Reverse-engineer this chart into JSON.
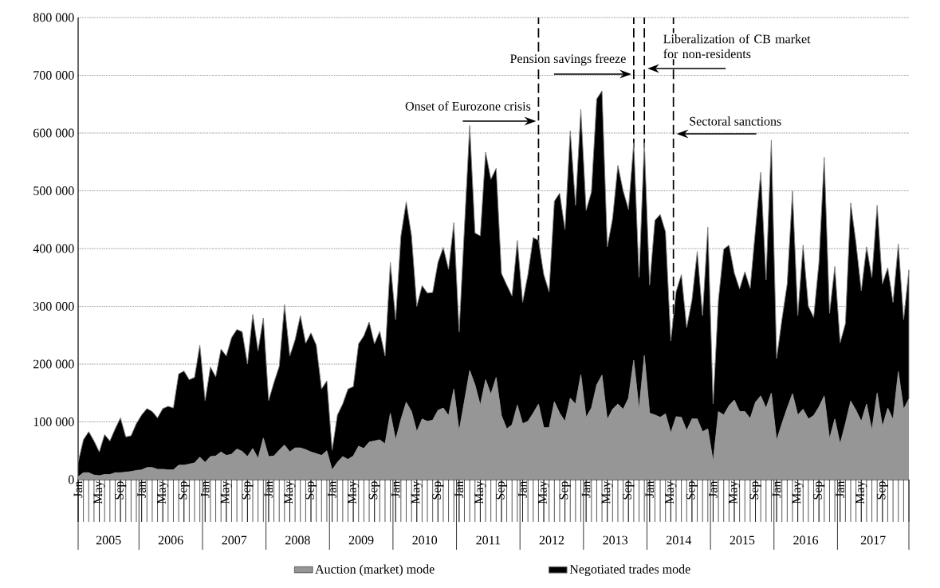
{
  "chart_data": {
    "type": "area",
    "stacked": true,
    "x": [
      "2005-01",
      "2005-02",
      "2005-03",
      "2005-04",
      "2005-05",
      "2005-06",
      "2005-07",
      "2005-08",
      "2005-09",
      "2005-10",
      "2005-11",
      "2005-12",
      "2006-01",
      "2006-02",
      "2006-03",
      "2006-04",
      "2006-05",
      "2006-06",
      "2006-07",
      "2006-08",
      "2006-09",
      "2006-10",
      "2006-11",
      "2006-12",
      "2007-01",
      "2007-02",
      "2007-03",
      "2007-04",
      "2007-05",
      "2007-06",
      "2007-07",
      "2007-08",
      "2007-09",
      "2007-10",
      "2007-11",
      "2007-12",
      "2008-01",
      "2008-02",
      "2008-03",
      "2008-04",
      "2008-05",
      "2008-06",
      "2008-07",
      "2008-08",
      "2008-09",
      "2008-10",
      "2008-11",
      "2008-12",
      "2009-01",
      "2009-02",
      "2009-03",
      "2009-04",
      "2009-05",
      "2009-06",
      "2009-07",
      "2009-08",
      "2009-09",
      "2009-10",
      "2009-11",
      "2009-12",
      "2010-01",
      "2010-02",
      "2010-03",
      "2010-04",
      "2010-05",
      "2010-06",
      "2010-07",
      "2010-08",
      "2010-09",
      "2010-10",
      "2010-11",
      "2010-12",
      "2011-01",
      "2011-02",
      "2011-03",
      "2011-04",
      "2011-05",
      "2011-06",
      "2011-07",
      "2011-08",
      "2011-09",
      "2011-10",
      "2011-11",
      "2011-12",
      "2012-01",
      "2012-02",
      "2012-03",
      "2012-04",
      "2012-05",
      "2012-06",
      "2012-07",
      "2012-08",
      "2012-09",
      "2012-10",
      "2012-11",
      "2012-12",
      "2013-01",
      "2013-02",
      "2013-03",
      "2013-04",
      "2013-05",
      "2013-06",
      "2013-07",
      "2013-08",
      "2013-09",
      "2013-10",
      "2013-11",
      "2013-12",
      "2014-01",
      "2014-02",
      "2014-03",
      "2014-04",
      "2014-05",
      "2014-06",
      "2014-07",
      "2014-08",
      "2014-09",
      "2014-10",
      "2014-11",
      "2014-12",
      "2015-01",
      "2015-02",
      "2015-03",
      "2015-04",
      "2015-05",
      "2015-06",
      "2015-07",
      "2015-08",
      "2015-09",
      "2015-10",
      "2015-11",
      "2015-12",
      "2016-01",
      "2016-02",
      "2016-03",
      "2016-04",
      "2016-05",
      "2016-06",
      "2016-07",
      "2016-08",
      "2016-09",
      "2016-10",
      "2016-11",
      "2016-12",
      "2017-01",
      "2017-02",
      "2017-03",
      "2017-04",
      "2017-05",
      "2017-06",
      "2017-07",
      "2017-08",
      "2017-09",
      "2017-10",
      "2017-11",
      "2017-12",
      "2018-01",
      "2018-02"
    ],
    "series": [
      {
        "name": "Auction (market) mode",
        "color": "#969696",
        "values": [
          5000,
          12000,
          12000,
          8000,
          7000,
          9000,
          9000,
          12000,
          12000,
          13000,
          14000,
          16000,
          17000,
          21000,
          21000,
          18000,
          18000,
          17000,
          17000,
          25000,
          25000,
          27000,
          29000,
          39000,
          30000,
          40000,
          41000,
          48000,
          42000,
          44000,
          53000,
          49000,
          40000,
          54000,
          37000,
          72000,
          40000,
          41000,
          51000,
          60000,
          48000,
          55000,
          55000,
          52000,
          48000,
          45000,
          42000,
          50000,
          17000,
          30000,
          40000,
          35000,
          41000,
          58000,
          54000,
          65000,
          67000,
          69000,
          62000,
          115000,
          69000,
          104000,
          134000,
          118000,
          83000,
          105000,
          101000,
          103000,
          120000,
          124000,
          111000,
          157000,
          84000,
          136000,
          189000,
          164000,
          129000,
          173000,
          148000,
          177000,
          111000,
          88000,
          95000,
          129000,
          97000,
          101000,
          115000,
          131000,
          90000,
          90000,
          135000,
          115000,
          101000,
          141000,
          131000,
          182000,
          108000,
          124000,
          164000,
          181000,
          104000,
          122000,
          131000,
          122000,
          141000,
          207000,
          122000,
          215000,
          115000,
          112000,
          108000,
          114000,
          81000,
          109000,
          108000,
          85000,
          105000,
          105000,
          83000,
          88000,
          32000,
          118000,
          112000,
          128000,
          138000,
          118000,
          118000,
          106000,
          134000,
          145000,
          124000,
          150000,
          68000,
          97000,
          124000,
          149000,
          112000,
          122000,
          105000,
          111000,
          126000,
          145000,
          71000,
          105000,
          62000,
          97000,
          136000,
          120000,
          101000,
          131000,
          86000,
          150000,
          92000,
          124000,
          104000,
          187000,
          122000,
          140000
        ]
      },
      {
        "name": "Negotiated trades mode",
        "color": "#000000",
        "values": [
          25000,
          57000,
          71000,
          59000,
          41000,
          69000,
          58000,
          76000,
          95000,
          61000,
          62000,
          81000,
          95000,
          102000,
          97000,
          89000,
          105000,
          110000,
          107000,
          158000,
          163000,
          146000,
          148000,
          194000,
          107000,
          155000,
          137000,
          178000,
          172000,
          202000,
          207000,
          207000,
          160000,
          232000,
          186000,
          208000,
          97000,
          127000,
          145000,
          243000,
          166000,
          187000,
          229000,
          184000,
          206000,
          188000,
          115000,
          121000,
          34000,
          82000,
          91000,
          122000,
          120000,
          177000,
          195000,
          208000,
          168000,
          188000,
          152000,
          261000,
          208000,
          318000,
          347000,
          304000,
          217000,
          231000,
          222000,
          221000,
          256000,
          278000,
          253000,
          288000,
          172000,
          300000,
          424000,
          263000,
          293000,
          394000,
          372000,
          362000,
          246000,
          249000,
          223000,
          285000,
          210000,
          254000,
          304000,
          283000,
          265000,
          235000,
          347000,
          381000,
          332000,
          463000,
          344000,
          459000,
          358000,
          374000,
          495000,
          492000,
          299000,
          330000,
          413000,
          378000,
          327000,
          376000,
          228000,
          368000,
          222000,
          337000,
          351000,
          315000,
          159000,
          216000,
          247000,
          178000,
          206000,
          290000,
          201000,
          349000,
          99000,
          193000,
          287000,
          278000,
          220000,
          212000,
          242000,
          225000,
          299000,
          387000,
          222000,
          438000,
          142000,
          180000,
          215000,
          351000,
          172000,
          284000,
          195000,
          170000,
          250000,
          413000,
          217000,
          264000,
          175000,
          173000,
          343000,
          290000,
          226000,
          272000,
          264000,
          325000,
          247000,
          243000,
          203000,
          221000,
          155000,
          223000
        ]
      }
    ],
    "xlim": [
      "2005-01",
      "2018-02"
    ],
    "xticks": [
      {
        "value": "2005-01",
        "label": "Jan"
      },
      {
        "value": "2005-05",
        "label": "May"
      },
      {
        "value": "2005-09",
        "label": "Sep"
      },
      {
        "value": "2006-01",
        "label": "Jan"
      },
      {
        "value": "2006-05",
        "label": "May"
      },
      {
        "value": "2006-09",
        "label": "Sep"
      },
      {
        "value": "2007-01",
        "label": "Jan"
      },
      {
        "value": "2007-05",
        "label": "May"
      },
      {
        "value": "2007-09",
        "label": "Sep"
      },
      {
        "value": "2008-01",
        "label": "Jan"
      },
      {
        "value": "2008-05",
        "label": "May"
      },
      {
        "value": "2008-09",
        "label": "Sep"
      },
      {
        "value": "2009-01",
        "label": "Jan"
      },
      {
        "value": "2009-05",
        "label": "May"
      },
      {
        "value": "2009-09",
        "label": "Sep"
      },
      {
        "value": "2010-01",
        "label": "Jan"
      },
      {
        "value": "2010-05",
        "label": "May"
      },
      {
        "value": "2010-09",
        "label": "Sep"
      },
      {
        "value": "2011-01",
        "label": "Jan"
      },
      {
        "value": "2011-05",
        "label": "May"
      },
      {
        "value": "2011-09",
        "label": "Sep"
      },
      {
        "value": "2012-01",
        "label": "Jan"
      },
      {
        "value": "2012-05",
        "label": "May"
      },
      {
        "value": "2012-09",
        "label": "Sep"
      },
      {
        "value": "2013-01",
        "label": "Jan"
      },
      {
        "value": "2013-05",
        "label": "May"
      },
      {
        "value": "2013-09",
        "label": "Sep"
      },
      {
        "value": "2014-01",
        "label": "Jan"
      },
      {
        "value": "2014-05",
        "label": "May"
      },
      {
        "value": "2014-09",
        "label": "Sep"
      },
      {
        "value": "2015-01",
        "label": "Jan"
      },
      {
        "value": "2015-05",
        "label": "May"
      },
      {
        "value": "2015-09",
        "label": "Sep"
      },
      {
        "value": "2016-01",
        "label": "Jan"
      },
      {
        "value": "2016-05",
        "label": "May"
      },
      {
        "value": "2016-09",
        "label": "Sep"
      },
      {
        "value": "2017-01",
        "label": "Jan"
      },
      {
        "value": "2017-05",
        "label": "May"
      },
      {
        "value": "2017-09",
        "label": "Sep"
      }
    ],
    "ylim": [
      0,
      800000
    ],
    "yticks": [
      0,
      {
        "value": 100000,
        "label": "100 000"
      },
      {
        "value": 200000,
        "label": "200 000"
      },
      {
        "value": 300000,
        "label": "300 000"
      },
      {
        "value": 400000,
        "label": "400 000"
      },
      {
        "value": 500000,
        "label": "500 000"
      },
      {
        "value": 600000,
        "label": "600 000"
      },
      {
        "value": 700000,
        "label": "700 000"
      },
      {
        "value": 800000,
        "label": "800 000"
      }
    ],
    "grid": "y",
    "legend": "bottom",
    "ref_lines": [
      {
        "axis": "x",
        "value": "2012-04",
        "label": "Onset of Eurozone crisis",
        "line_style": "dashed",
        "color": "#000000"
      },
      {
        "axis": "x",
        "value": "2013-10",
        "label": "Pension savings freeze",
        "line_style": "dashed",
        "color": "#000000"
      },
      {
        "axis": "x",
        "value": "2013-12",
        "label": "Liberalization of CB market for non-residents",
        "line_style": "dashed",
        "color": "#000000"
      },
      {
        "axis": "x",
        "value": "2014-05-16",
        "label": "Sectoral sanctions",
        "line_style": "dashed",
        "color": "#000000"
      }
    ],
    "annotations": [
      "2005",
      "2006",
      "2007",
      "2008",
      "2009",
      "2010",
      "2011",
      "2012",
      "2013",
      "2014",
      "2015",
      "2016",
      "2017"
    ]
  }
}
